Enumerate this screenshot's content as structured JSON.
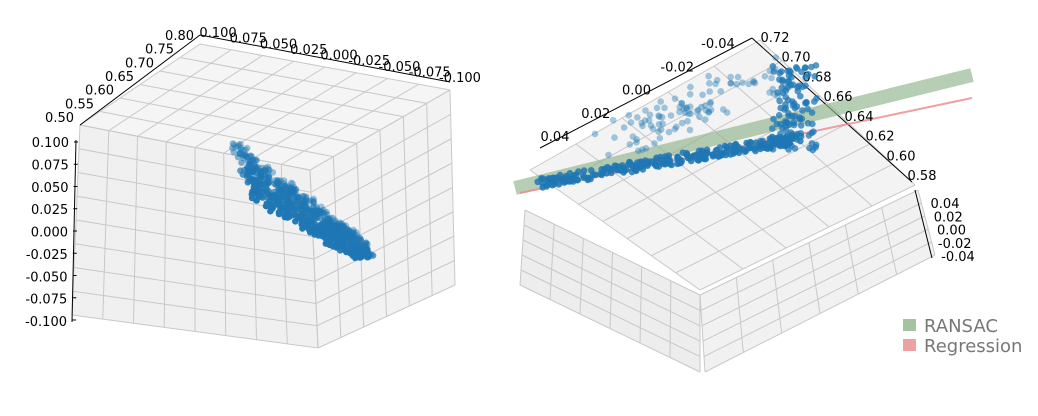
{
  "colors": {
    "points": "#1f77b4",
    "ransac": "#8fb38a",
    "regression": "#e88a8a",
    "pane": "#f2f2f2",
    "grid": "#c8c8c8"
  },
  "chart_data": [
    {
      "type": "scatter",
      "projection": "3d",
      "title": "",
      "axes": {
        "x": {
          "range": [
            -0.1,
            0.1
          ],
          "ticks": [
            "0.100",
            "0.075",
            "0.050",
            "0.025",
            "0.000",
            "-0.025",
            "-0.050",
            "-0.075",
            "-0.100"
          ]
        },
        "y": {
          "range": [
            0.5,
            0.8
          ],
          "ticks": [
            "0.50",
            "0.55",
            "0.60",
            "0.65",
            "0.70",
            "0.75",
            "0.80"
          ]
        },
        "z": {
          "range": [
            -0.1,
            0.1
          ],
          "ticks": [
            "0.100",
            "0.075",
            "0.050",
            "0.025",
            "0.000",
            "-0.025",
            "-0.050",
            "-0.075",
            "-0.100"
          ]
        }
      },
      "grid": true,
      "series": [
        {
          "marker": "circle",
          "color": "#1f77b4",
          "approx_points": 700,
          "cluster": {
            "x_range": [
              -0.02,
              0.06
            ],
            "y_range": [
              0.58,
              0.72
            ],
            "z_range": [
              -0.03,
              0.09
            ]
          }
        }
      ]
    },
    {
      "type": "scatter",
      "projection": "3d",
      "title": "",
      "axes": {
        "x": {
          "ticks": [
            "-0.04",
            "-0.02",
            "0.00",
            "0.02",
            "0.04"
          ]
        },
        "y": {
          "ticks": [
            "0.72",
            "0.70",
            "0.68",
            "0.66",
            "0.64",
            "0.62",
            "0.60",
            "0.58"
          ]
        },
        "z": {
          "ticks": [
            "0.04",
            "0.02",
            "0.00",
            "-0.02",
            "-0.04"
          ]
        }
      },
      "grid": true,
      "series": [
        {
          "marker": "circle",
          "color": "#1f77b4",
          "approx_points": 500
        }
      ],
      "fitted_lines": [
        {
          "name": "RANSAC",
          "color": "#8fb38a",
          "style": "wide band"
        },
        {
          "name": "Regression",
          "color": "#e88a8a",
          "style": "thin line"
        }
      ],
      "legend": {
        "position": "lower-right",
        "entries": [
          {
            "label": "RANSAC",
            "color": "#8fb38a"
          },
          {
            "label": "Regression",
            "color": "#e88a8a"
          }
        ]
      }
    }
  ]
}
